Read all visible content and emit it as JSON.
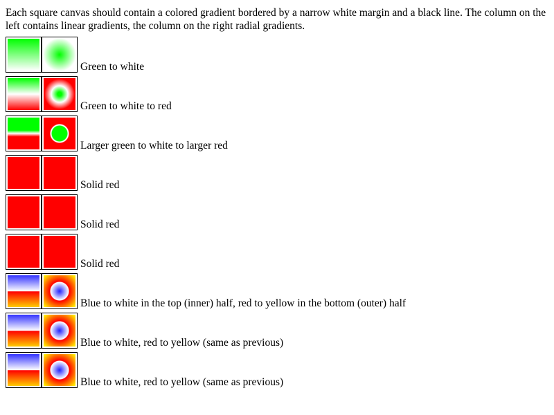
{
  "intro_text": "Each square canvas should contain a colored gradient bordered by a narrow white margin and a black line. The column on the left contains linear gradients, the column on the right radial gradients.",
  "rows": [
    {
      "label": "Green to white"
    },
    {
      "label": "Green to white to red"
    },
    {
      "label": "Larger green to white to larger red"
    },
    {
      "label": "Solid red"
    },
    {
      "label": "Solid red"
    },
    {
      "label": "Solid red"
    },
    {
      "label": "Blue to white in the top (inner) half, red to yellow in the bottom (outer) half"
    },
    {
      "label": "Blue to white, red to yellow (same as previous)"
    },
    {
      "label": "Blue to white, red to yellow (same as previous)"
    }
  ],
  "colors": {
    "green": "#00ff00",
    "white": "#ffffff",
    "red": "#ff0000",
    "blue": "#3333ff",
    "yellow": "#ffff00"
  }
}
